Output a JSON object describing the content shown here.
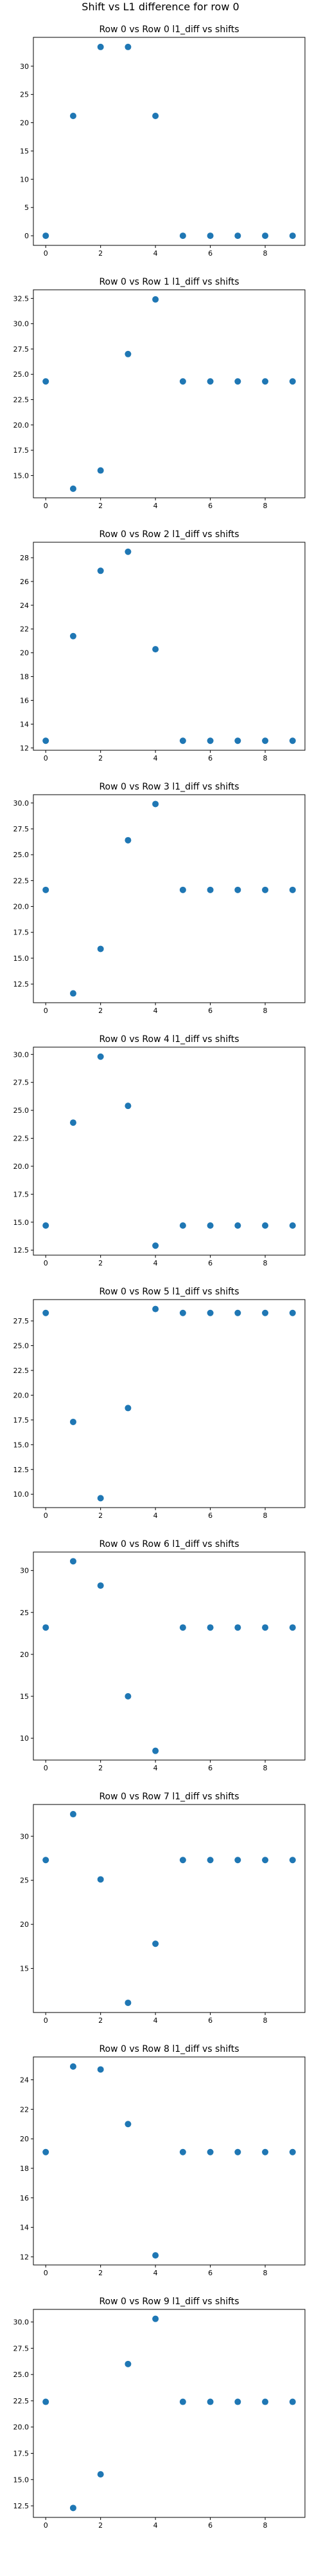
{
  "suptitle": "Shift vs L1 difference for row 0",
  "colors": {
    "marker": "#1f77b4",
    "axes": "#000000",
    "background": "#ffffff"
  },
  "chart_data": [
    {
      "type": "scatter",
      "title": "Row 0 vs Row 0 l1_diff vs shifts",
      "x": [
        0,
        1,
        2,
        3,
        4,
        5,
        6,
        7,
        8,
        9
      ],
      "y": [
        0,
        21.2,
        33.4,
        33.4,
        21.2,
        0,
        0,
        0,
        0,
        0
      ],
      "xlim": [
        -0.45,
        9.45
      ],
      "ylim": [
        -1.7,
        35.1
      ],
      "xticks": [
        0,
        2,
        4,
        6,
        8
      ],
      "yticks": [
        0,
        5,
        10,
        15,
        20,
        25,
        30
      ],
      "ytick_labels": [
        "0",
        "5",
        "10",
        "15",
        "20",
        "25",
        "30"
      ]
    },
    {
      "type": "scatter",
      "title": "Row 0 vs Row 1 l1_diff vs shifts",
      "x": [
        0,
        1,
        2,
        3,
        4,
        5,
        6,
        7,
        8,
        9
      ],
      "y": [
        24.3,
        13.7,
        15.5,
        27.0,
        32.4,
        24.3,
        24.3,
        24.3,
        24.3,
        24.3
      ],
      "xlim": [
        -0.45,
        9.45
      ],
      "ylim": [
        12.8,
        33.35
      ],
      "xticks": [
        0,
        2,
        4,
        6,
        8
      ],
      "yticks": [
        15.0,
        17.5,
        20.0,
        22.5,
        25.0,
        27.5,
        30.0,
        32.5
      ],
      "ytick_labels": [
        "15.0",
        "17.5",
        "20.0",
        "22.5",
        "25.0",
        "27.5",
        "30.0",
        "32.5"
      ]
    },
    {
      "type": "scatter",
      "title": "Row 0 vs Row 2 l1_diff vs shifts",
      "x": [
        0,
        1,
        2,
        3,
        4,
        5,
        6,
        7,
        8,
        9
      ],
      "y": [
        12.6,
        21.4,
        26.9,
        28.5,
        20.3,
        12.6,
        12.6,
        12.6,
        12.6,
        12.6
      ],
      "xlim": [
        -0.45,
        9.45
      ],
      "ylim": [
        11.8,
        29.3
      ],
      "xticks": [
        0,
        2,
        4,
        6,
        8
      ],
      "yticks": [
        12,
        14,
        16,
        18,
        20,
        22,
        24,
        26,
        28
      ],
      "ytick_labels": [
        "12",
        "14",
        "16",
        "18",
        "20",
        "22",
        "24",
        "26",
        "28"
      ]
    },
    {
      "type": "scatter",
      "title": "Row 0 vs Row 3 l1_diff vs shifts",
      "x": [
        0,
        1,
        2,
        3,
        4,
        5,
        6,
        7,
        8,
        9
      ],
      "y": [
        21.6,
        11.6,
        15.9,
        26.4,
        29.9,
        21.6,
        21.6,
        21.6,
        21.6,
        21.6
      ],
      "xlim": [
        -0.45,
        9.45
      ],
      "ylim": [
        10.7,
        30.8
      ],
      "xticks": [
        0,
        2,
        4,
        6,
        8
      ],
      "yticks": [
        12.5,
        15.0,
        17.5,
        20.0,
        22.5,
        25.0,
        27.5,
        30.0
      ],
      "ytick_labels": [
        "12.5",
        "15.0",
        "17.5",
        "20.0",
        "22.5",
        "25.0",
        "27.5",
        "30.0"
      ]
    },
    {
      "type": "scatter",
      "title": "Row 0 vs Row 4 l1_diff vs shifts",
      "x": [
        0,
        1,
        2,
        3,
        4,
        5,
        6,
        7,
        8,
        9
      ],
      "y": [
        14.7,
        23.9,
        29.8,
        25.4,
        12.9,
        14.7,
        14.7,
        14.7,
        14.7,
        14.7
      ],
      "xlim": [
        -0.45,
        9.45
      ],
      "ylim": [
        12.05,
        30.65
      ],
      "xticks": [
        0,
        2,
        4,
        6,
        8
      ],
      "yticks": [
        12.5,
        15.0,
        17.5,
        20.0,
        22.5,
        25.0,
        27.5,
        30.0
      ],
      "ytick_labels": [
        "12.5",
        "15.0",
        "17.5",
        "20.0",
        "22.5",
        "25.0",
        "27.5",
        "30.0"
      ]
    },
    {
      "type": "scatter",
      "title": "Row 0 vs Row 5 l1_diff vs shifts",
      "x": [
        0,
        1,
        2,
        3,
        4,
        5,
        6,
        7,
        8,
        9
      ],
      "y": [
        28.3,
        17.3,
        9.6,
        18.7,
        28.7,
        28.3,
        28.3,
        28.3,
        28.3,
        28.3
      ],
      "xlim": [
        -0.45,
        9.45
      ],
      "ylim": [
        8.65,
        29.65
      ],
      "xticks": [
        0,
        2,
        4,
        6,
        8
      ],
      "yticks": [
        10.0,
        12.5,
        15.0,
        17.5,
        20.0,
        22.5,
        25.0,
        27.5
      ],
      "ytick_labels": [
        "10.0",
        "12.5",
        "15.0",
        "17.5",
        "20.0",
        "22.5",
        "25.0",
        "27.5"
      ]
    },
    {
      "type": "scatter",
      "title": "Row 0 vs Row 6 l1_diff vs shifts",
      "x": [
        0,
        1,
        2,
        3,
        4,
        5,
        6,
        7,
        8,
        9
      ],
      "y": [
        23.2,
        31.1,
        28.2,
        15.0,
        8.5,
        23.2,
        23.2,
        23.2,
        23.2,
        23.2
      ],
      "xlim": [
        -0.45,
        9.45
      ],
      "ylim": [
        7.4,
        32.2
      ],
      "xticks": [
        0,
        2,
        4,
        6,
        8
      ],
      "yticks": [
        10,
        15,
        20,
        25,
        30
      ],
      "ytick_labels": [
        "10",
        "15",
        "20",
        "25",
        "30"
      ]
    },
    {
      "type": "scatter",
      "title": "Row 0 vs Row 7 l1_diff vs shifts",
      "x": [
        0,
        1,
        2,
        3,
        4,
        5,
        6,
        7,
        8,
        9
      ],
      "y": [
        27.3,
        32.5,
        25.1,
        11.1,
        17.8,
        27.3,
        27.3,
        27.3,
        27.3,
        27.3
      ],
      "xlim": [
        -0.45,
        9.45
      ],
      "ylim": [
        10.0,
        33.6
      ],
      "xticks": [
        0,
        2,
        4,
        6,
        8
      ],
      "yticks": [
        15,
        20,
        25,
        30
      ],
      "ytick_labels": [
        "15",
        "20",
        "25",
        "30"
      ]
    },
    {
      "type": "scatter",
      "title": "Row 0 vs Row 8 l1_diff vs shifts",
      "x": [
        0,
        1,
        2,
        3,
        4,
        5,
        6,
        7,
        8,
        9
      ],
      "y": [
        19.1,
        24.9,
        24.7,
        21.0,
        12.1,
        19.1,
        19.1,
        19.1,
        19.1,
        19.1
      ],
      "xlim": [
        -0.45,
        9.45
      ],
      "ylim": [
        11.45,
        25.55
      ],
      "xticks": [
        0,
        2,
        4,
        6,
        8
      ],
      "yticks": [
        12,
        14,
        16,
        18,
        20,
        22,
        24
      ],
      "ytick_labels": [
        "12",
        "14",
        "16",
        "18",
        "20",
        "22",
        "24"
      ]
    },
    {
      "type": "scatter",
      "title": "Row 0 vs Row 9 l1_diff vs shifts",
      "x": [
        0,
        1,
        2,
        3,
        4,
        5,
        6,
        7,
        8,
        9
      ],
      "y": [
        22.4,
        12.3,
        15.5,
        26.0,
        30.3,
        22.4,
        22.4,
        22.4,
        22.4,
        22.4
      ],
      "xlim": [
        -0.45,
        9.45
      ],
      "ylim": [
        11.4,
        31.2
      ],
      "xticks": [
        0,
        2,
        4,
        6,
        8
      ],
      "yticks": [
        12.5,
        15.0,
        17.5,
        20.0,
        22.5,
        25.0,
        27.5,
        30.0
      ],
      "ytick_labels": [
        "12.5",
        "15.0",
        "17.5",
        "20.0",
        "22.5",
        "25.0",
        "27.5",
        "30.0"
      ]
    }
  ]
}
